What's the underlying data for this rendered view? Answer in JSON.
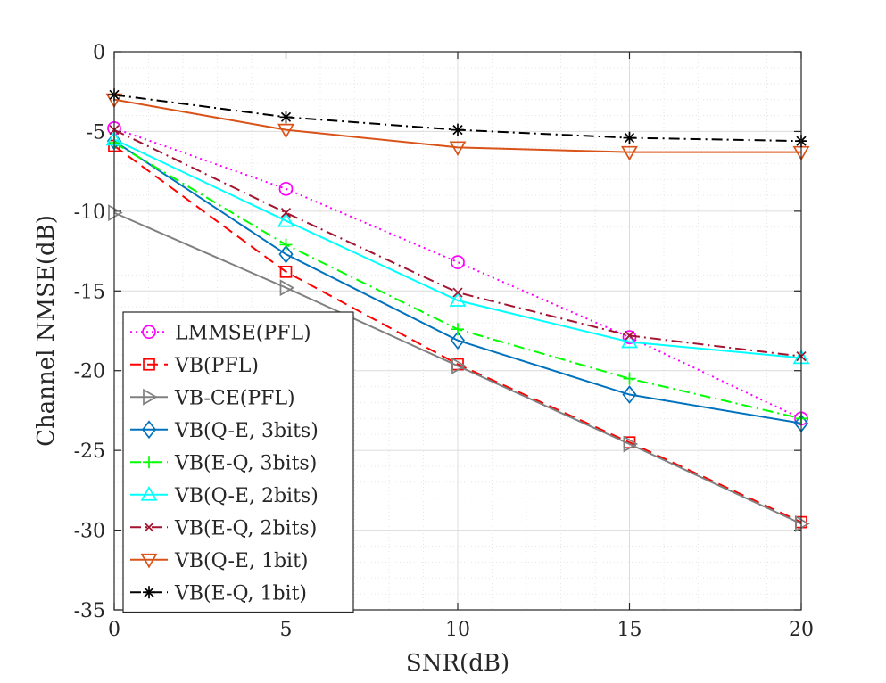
{
  "chart_data": {
    "type": "line",
    "title": "",
    "xlabel": "SNR(dB)",
    "ylabel": "Channel NMSE(dB)",
    "xlim": [
      0,
      20
    ],
    "ylim": [
      -35,
      0
    ],
    "grid": true,
    "minor_grid": true,
    "legend_position": "bottom-left",
    "x": [
      0,
      5,
      10,
      15,
      20
    ],
    "xticks": [
      0,
      5,
      10,
      15,
      20
    ],
    "yticks": [
      0,
      -5,
      -10,
      -15,
      -20,
      -25,
      -30,
      -35
    ],
    "series": [
      {
        "name": "LMMSE(PFL)",
        "color": "#ff00ff",
        "dash": "dotted",
        "marker": "circle",
        "values": [
          -4.8,
          -8.6,
          -13.2,
          -17.9,
          -23.0
        ]
      },
      {
        "name": "VB(PFL)",
        "color": "#ff0000",
        "dash": "dashed",
        "marker": "square",
        "values": [
          -5.9,
          -13.8,
          -19.6,
          -24.5,
          -29.5
        ]
      },
      {
        "name": "VB-CE(PFL)",
        "color": "#808080",
        "dash": "solid",
        "marker": "triangle-right",
        "values": [
          -10.1,
          -14.8,
          -19.7,
          -24.6,
          -29.6
        ]
      },
      {
        "name": "VB(Q-E, 3bits)",
        "color": "#0072bd",
        "dash": "solid",
        "marker": "diamond",
        "values": [
          -5.6,
          -12.7,
          -18.1,
          -21.5,
          -23.3
        ]
      },
      {
        "name": "VB(E-Q, 3bits)",
        "color": "#00ff00",
        "dash": "dashdot",
        "marker": "plus",
        "values": [
          -5.7,
          -12.1,
          -17.4,
          -20.5,
          -23.0
        ]
      },
      {
        "name": "VB(Q-E, 2bits)",
        "color": "#00ffff",
        "dash": "solid",
        "marker": "triangle-up",
        "values": [
          -5.5,
          -10.6,
          -15.6,
          -18.2,
          -19.2
        ]
      },
      {
        "name": "VB(E-Q, 2bits)",
        "color": "#a2142f",
        "dash": "dashdot",
        "marker": "x",
        "values": [
          -4.9,
          -10.1,
          -15.1,
          -17.8,
          -19.1
        ]
      },
      {
        "name": "VB(Q-E, 1bit)",
        "color": "#d95319",
        "dash": "solid",
        "marker": "triangle-down",
        "values": [
          -3.0,
          -4.9,
          -6.0,
          -6.3,
          -6.3
        ]
      },
      {
        "name": "VB(E-Q, 1bit)",
        "color": "#000000",
        "dash": "dashdot",
        "marker": "asterisk",
        "values": [
          -2.7,
          -4.1,
          -4.9,
          -5.4,
          -5.6
        ]
      }
    ]
  }
}
